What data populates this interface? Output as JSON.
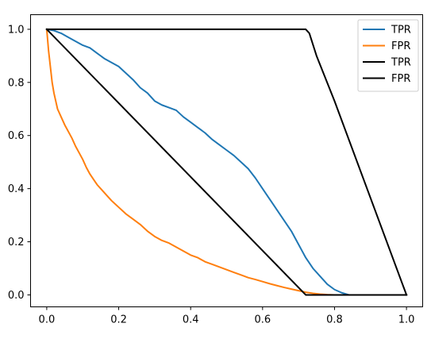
{
  "chart_data": {
    "type": "line",
    "title": "",
    "xlabel": "",
    "ylabel": "",
    "xlim": [
      -0.045,
      1.045
    ],
    "ylim": [
      -0.045,
      1.055
    ],
    "x_ticks": [
      "0.0",
      "0.2",
      "0.4",
      "0.6",
      "0.8",
      "1.0"
    ],
    "x_tick_values": [
      0.0,
      0.2,
      0.4,
      0.6,
      0.8,
      1.0
    ],
    "y_ticks": [
      "0.0",
      "0.2",
      "0.4",
      "0.6",
      "0.8",
      "1.0"
    ],
    "y_tick_values": [
      0.0,
      0.2,
      0.4,
      0.6,
      0.8,
      1.0
    ],
    "grid": false,
    "legend_position": "top-right",
    "series": [
      {
        "name": "TPR",
        "color": "#1f77b4",
        "points": [
          [
            0.0,
            1.0
          ],
          [
            0.02,
            0.995
          ],
          [
            0.04,
            0.985
          ],
          [
            0.06,
            0.97
          ],
          [
            0.08,
            0.955
          ],
          [
            0.1,
            0.94
          ],
          [
            0.12,
            0.93
          ],
          [
            0.14,
            0.91
          ],
          [
            0.16,
            0.89
          ],
          [
            0.18,
            0.875
          ],
          [
            0.2,
            0.86
          ],
          [
            0.22,
            0.835
          ],
          [
            0.24,
            0.81
          ],
          [
            0.26,
            0.78
          ],
          [
            0.28,
            0.76
          ],
          [
            0.3,
            0.73
          ],
          [
            0.32,
            0.715
          ],
          [
            0.34,
            0.705
          ],
          [
            0.36,
            0.695
          ],
          [
            0.38,
            0.67
          ],
          [
            0.4,
            0.65
          ],
          [
            0.42,
            0.63
          ],
          [
            0.44,
            0.61
          ],
          [
            0.46,
            0.585
          ],
          [
            0.48,
            0.565
          ],
          [
            0.5,
            0.545
          ],
          [
            0.52,
            0.525
          ],
          [
            0.54,
            0.5
          ],
          [
            0.56,
            0.475
          ],
          [
            0.58,
            0.44
          ],
          [
            0.6,
            0.4
          ],
          [
            0.62,
            0.36
          ],
          [
            0.64,
            0.32
          ],
          [
            0.66,
            0.28
          ],
          [
            0.68,
            0.24
          ],
          [
            0.7,
            0.19
          ],
          [
            0.72,
            0.14
          ],
          [
            0.74,
            0.1
          ],
          [
            0.76,
            0.07
          ],
          [
            0.78,
            0.04
          ],
          [
            0.8,
            0.02
          ],
          [
            0.82,
            0.008
          ],
          [
            0.84,
            0.0
          ],
          [
            1.0,
            0.0
          ]
        ]
      },
      {
        "name": "FPR",
        "color": "#ff7f0e",
        "points": [
          [
            0.0,
            1.0
          ],
          [
            0.005,
            0.92
          ],
          [
            0.01,
            0.86
          ],
          [
            0.015,
            0.8
          ],
          [
            0.02,
            0.76
          ],
          [
            0.03,
            0.7
          ],
          [
            0.04,
            0.67
          ],
          [
            0.05,
            0.64
          ],
          [
            0.06,
            0.615
          ],
          [
            0.07,
            0.59
          ],
          [
            0.08,
            0.56
          ],
          [
            0.09,
            0.535
          ],
          [
            0.1,
            0.51
          ],
          [
            0.11,
            0.48
          ],
          [
            0.12,
            0.455
          ],
          [
            0.13,
            0.435
          ],
          [
            0.14,
            0.415
          ],
          [
            0.16,
            0.385
          ],
          [
            0.18,
            0.355
          ],
          [
            0.2,
            0.33
          ],
          [
            0.22,
            0.305
          ],
          [
            0.24,
            0.285
          ],
          [
            0.26,
            0.265
          ],
          [
            0.28,
            0.24
          ],
          [
            0.3,
            0.22
          ],
          [
            0.32,
            0.205
          ],
          [
            0.34,
            0.195
          ],
          [
            0.36,
            0.18
          ],
          [
            0.38,
            0.165
          ],
          [
            0.4,
            0.15
          ],
          [
            0.42,
            0.14
          ],
          [
            0.44,
            0.125
          ],
          [
            0.46,
            0.115
          ],
          [
            0.48,
            0.105
          ],
          [
            0.5,
            0.095
          ],
          [
            0.52,
            0.085
          ],
          [
            0.54,
            0.075
          ],
          [
            0.56,
            0.065
          ],
          [
            0.58,
            0.058
          ],
          [
            0.6,
            0.05
          ],
          [
            0.62,
            0.042
          ],
          [
            0.64,
            0.035
          ],
          [
            0.66,
            0.028
          ],
          [
            0.68,
            0.022
          ],
          [
            0.7,
            0.016
          ],
          [
            0.72,
            0.01
          ],
          [
            0.74,
            0.006
          ],
          [
            0.76,
            0.003
          ],
          [
            0.78,
            0.001
          ],
          [
            0.8,
            0.0
          ],
          [
            1.0,
            0.0
          ]
        ]
      },
      {
        "name": "TPR",
        "color": "#000000",
        "points": [
          [
            0.0,
            1.0
          ],
          [
            0.72,
            1.0
          ],
          [
            0.73,
            0.985
          ],
          [
            0.75,
            0.9
          ],
          [
            0.8,
            0.73
          ],
          [
            1.0,
            0.0
          ]
        ]
      },
      {
        "name": "FPR",
        "color": "#000000",
        "points": [
          [
            0.0,
            1.0
          ],
          [
            0.72,
            0.0
          ],
          [
            1.0,
            0.0
          ]
        ]
      }
    ]
  }
}
